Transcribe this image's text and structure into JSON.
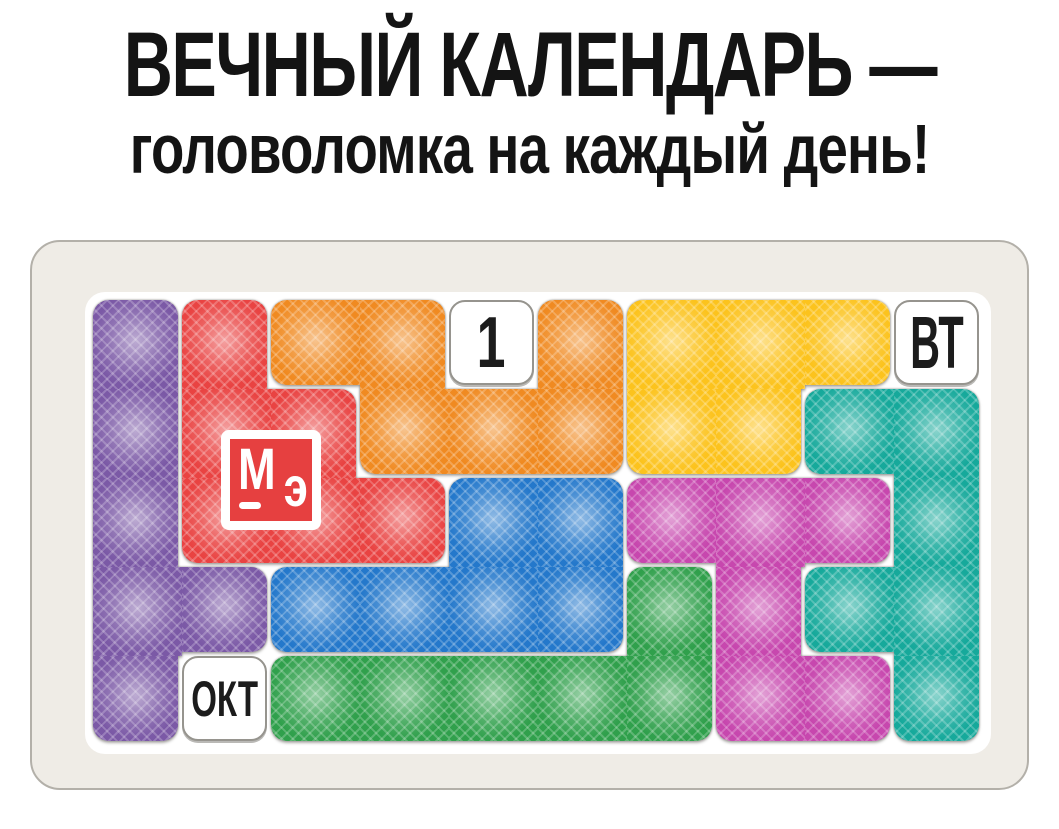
{
  "title": "ВЕЧНЫЙ КАЛЕНДАРЬ —",
  "subtitle": "головоломка на каждый день!",
  "logo": {
    "top_letter": "М",
    "bottom_letter": "э"
  },
  "board": {
    "cols": 10,
    "rows": 5,
    "board_color": "#efece6",
    "labels": [
      {
        "name": "date-tile",
        "text": "1",
        "col": 5,
        "row": 1
      },
      {
        "name": "weekday-tile",
        "text": "ВТ",
        "col": 10,
        "row": 1
      },
      {
        "name": "month-tile",
        "text": "ОКТ",
        "col": 2,
        "row": 5
      }
    ],
    "pieces": [
      {
        "name": "purple",
        "color": "#7b59a6",
        "cells": [
          [
            1,
            1
          ],
          [
            1,
            2
          ],
          [
            1,
            3
          ],
          [
            1,
            4
          ],
          [
            2,
            4
          ],
          [
            1,
            5
          ]
        ]
      },
      {
        "name": "red",
        "color": "#e94342",
        "cells": [
          [
            2,
            1
          ],
          [
            2,
            2
          ],
          [
            3,
            2
          ],
          [
            2,
            3
          ],
          [
            3,
            3
          ],
          [
            4,
            3
          ]
        ]
      },
      {
        "name": "orange",
        "color": "#f08a21",
        "cells": [
          [
            3,
            1
          ],
          [
            4,
            1
          ],
          [
            6,
            1
          ],
          [
            4,
            2
          ],
          [
            5,
            2
          ],
          [
            6,
            2
          ]
        ]
      },
      {
        "name": "yellow",
        "color": "#fcc31d",
        "cells": [
          [
            7,
            1
          ],
          [
            8,
            1
          ],
          [
            9,
            1
          ],
          [
            7,
            2
          ],
          [
            8,
            2
          ]
        ]
      },
      {
        "name": "teal",
        "color": "#16a99b",
        "cells": [
          [
            9,
            2
          ],
          [
            10,
            2
          ],
          [
            10,
            3
          ],
          [
            9,
            4
          ],
          [
            10,
            4
          ],
          [
            10,
            5
          ]
        ]
      },
      {
        "name": "magenta",
        "color": "#c747ae",
        "cells": [
          [
            7,
            3
          ],
          [
            8,
            3
          ],
          [
            9,
            3
          ],
          [
            8,
            4
          ],
          [
            8,
            5
          ],
          [
            9,
            5
          ]
        ]
      },
      {
        "name": "blue",
        "color": "#2478cb",
        "cells": [
          [
            5,
            3
          ],
          [
            6,
            3
          ],
          [
            3,
            4
          ],
          [
            4,
            4
          ],
          [
            5,
            4
          ],
          [
            6,
            4
          ]
        ]
      },
      {
        "name": "green",
        "color": "#30a04c",
        "cells": [
          [
            7,
            4
          ],
          [
            3,
            5
          ],
          [
            4,
            5
          ],
          [
            5,
            5
          ],
          [
            6,
            5
          ],
          [
            7,
            5
          ]
        ]
      }
    ]
  }
}
